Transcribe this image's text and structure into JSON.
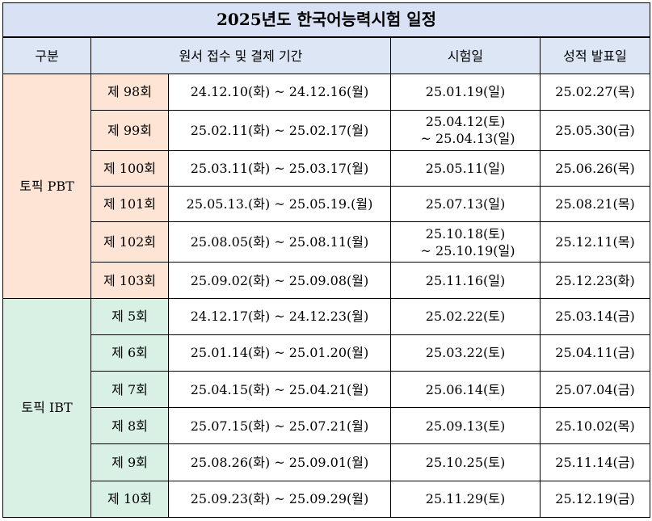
{
  "title": "2025년도 한국어능력시험 일정",
  "headers": {
    "category": "구분",
    "application": "원서 접수 및 결제 기간",
    "exam_date": "시험일",
    "result_date": "성적 발표일"
  },
  "groups": [
    {
      "name": "토픽 PBT",
      "rows": [
        {
          "round": "제 98회",
          "application": "24.12.10(화) ~ 24.12.16(월)",
          "exam": [
            "25.01.19(일)"
          ],
          "result": "25.02.27(목)"
        },
        {
          "round": "제 99회",
          "application": "25.02.11(화) ~ 25.02.17(월)",
          "exam": [
            "25.04.12(토)",
            "~ 25.04.13(일)"
          ],
          "result": "25.05.30(금)"
        },
        {
          "round": "제 100회",
          "application": "25.03.11(화) ~ 25.03.17(월)",
          "exam": [
            "25.05.11(일)"
          ],
          "result": "25.06.26(목)"
        },
        {
          "round": "제 101회",
          "application": "25.05.13.(화) ~ 25.05.19.(월)",
          "exam": [
            "25.07.13(일)"
          ],
          "result": "25.08.21(목)"
        },
        {
          "round": "제 102회",
          "application": "25.08.05(화) ~ 25.08.11(월)",
          "exam": [
            "25.10.18(토)",
            "~ 25.10.19(일)"
          ],
          "result": "25.12.11(목)"
        },
        {
          "round": "제 103회",
          "application": "25.09.02(화) ~ 25.09.08(월)",
          "exam": [
            "25.11.16(일)"
          ],
          "result": "25.12.23(화)"
        }
      ]
    },
    {
      "name": "토픽 IBT",
      "rows": [
        {
          "round": "제 5회",
          "application": "24.12.17(화) ~ 24.12.23(월)",
          "exam": [
            "25.02.22(토)"
          ],
          "result": "25.03.14(금)"
        },
        {
          "round": "제 6회",
          "application": "25.01.14(화) ~ 25.01.20(월)",
          "exam": [
            "25.03.22(토)"
          ],
          "result": "25.04.11(금)"
        },
        {
          "round": "제 7회",
          "application": "25.04.15(화) ~ 25.04.21(월)",
          "exam": [
            "25.06.14(토)"
          ],
          "result": "25.07.04(금)"
        },
        {
          "round": "제 8회",
          "application": "25.07.15(화) ~ 25.07.21(월)",
          "exam": [
            "25.09.13(토)"
          ],
          "result": "25.10.02(목)"
        },
        {
          "round": "제 9회",
          "application": "25.08.26(화) ~ 25.09.01(월)",
          "exam": [
            "25.10.25(토)"
          ],
          "result": "25.11.14(금)"
        },
        {
          "round": "제 10회",
          "application": "25.09.23(화) ~ 25.09.29(월)",
          "exam": [
            "25.11.29(토)"
          ],
          "result": "25.12.19(금)"
        }
      ]
    }
  ],
  "colors": {
    "title_bg": "#d9e2f5",
    "header_bg": "#dce6f5",
    "pbt_bg": "#fde4d4",
    "ibt_bg": "#d8f1e4"
  }
}
